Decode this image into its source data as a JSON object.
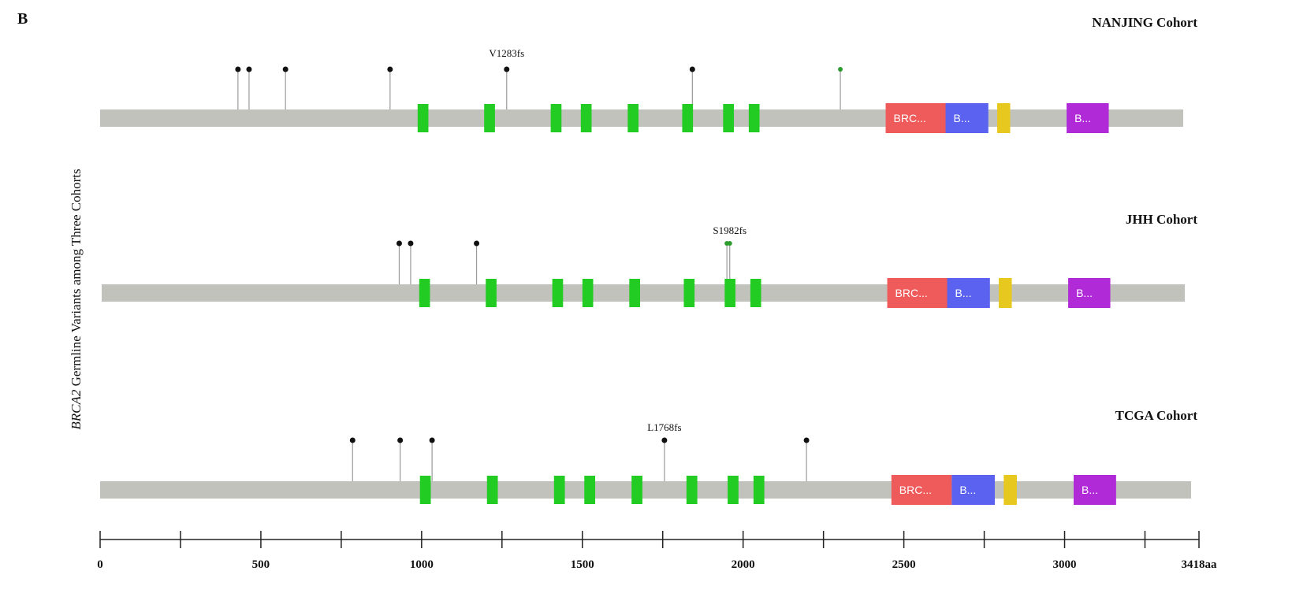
{
  "panel_label": "B",
  "ylabel_italic": "BRCA2",
  "ylabel_rest": " Germline Variants among Three Cohorts",
  "protein_length": 3418,
  "axis": {
    "ticks": [
      {
        "value": 0,
        "label": "0"
      },
      {
        "value": 250,
        "label": ""
      },
      {
        "value": 500,
        "label": "500"
      },
      {
        "value": 750,
        "label": ""
      },
      {
        "value": 1000,
        "label": "1000"
      },
      {
        "value": 1250,
        "label": ""
      },
      {
        "value": 1500,
        "label": "1500"
      },
      {
        "value": 1750,
        "label": ""
      },
      {
        "value": 2000,
        "label": "2000"
      },
      {
        "value": 2250,
        "label": ""
      },
      {
        "value": 2500,
        "label": "2500"
      },
      {
        "value": 2750,
        "label": ""
      },
      {
        "value": 3000,
        "label": "3000"
      },
      {
        "value": 3250,
        "label": ""
      },
      {
        "value": 3418,
        "label": "3418aa"
      }
    ]
  },
  "colors": {
    "backbone": "#c2c2bd",
    "brc_repeat": "#22cc22",
    "helical": "#ef5a5a",
    "ob_fold": "#5a62ef",
    "tower": "#e6c81e",
    "ob3": "#b02ad8",
    "lollipop_head": "#111111",
    "lollipop_head_alt": "#2e9c2e",
    "stem": "#9a9a9a",
    "axis": "#222222"
  },
  "cohorts": [
    {
      "name": "NANJING Cohort",
      "domains": [
        {
          "start": 1002,
          "end": 1036,
          "label": "",
          "kind": "brc_repeat"
        },
        {
          "start": 1212,
          "end": 1246,
          "label": "",
          "kind": "brc_repeat"
        },
        {
          "start": 1422,
          "end": 1456,
          "label": "",
          "kind": "brc_repeat"
        },
        {
          "start": 1517,
          "end": 1551,
          "label": "",
          "kind": "brc_repeat"
        },
        {
          "start": 1665,
          "end": 1699,
          "label": "",
          "kind": "brc_repeat"
        },
        {
          "start": 1837,
          "end": 1871,
          "label": "",
          "kind": "brc_repeat"
        },
        {
          "start": 1966,
          "end": 2000,
          "label": "",
          "kind": "brc_repeat"
        },
        {
          "start": 2047,
          "end": 2081,
          "label": "",
          "kind": "brc_repeat"
        },
        {
          "start": 2479,
          "end": 2668,
          "label": "BRC...",
          "kind": "helical"
        },
        {
          "start": 2668,
          "end": 2803,
          "label": "B...",
          "kind": "ob_fold"
        },
        {
          "start": 2831,
          "end": 2872,
          "label": "",
          "kind": "tower"
        },
        {
          "start": 3050,
          "end": 3183,
          "label": "B...",
          "kind": "ob3"
        }
      ],
      "variants": [
        {
          "position": 435,
          "label": "",
          "color": "lollipop_head"
        },
        {
          "position": 470,
          "label": "",
          "color": "lollipop_head"
        },
        {
          "position": 585,
          "label": "",
          "color": "lollipop_head"
        },
        {
          "position": 915,
          "label": "",
          "color": "lollipop_head"
        },
        {
          "position": 1283,
          "label": "V1283fs",
          "color": "lollipop_head"
        },
        {
          "position": 1869,
          "label": "",
          "color": "lollipop_head"
        },
        {
          "position": 2336,
          "label": "",
          "color": "lollipop_head_alt"
        }
      ]
    },
    {
      "name": "JHH Cohort",
      "domains": [
        {
          "start": 1002,
          "end": 1036,
          "label": "",
          "kind": "brc_repeat"
        },
        {
          "start": 1212,
          "end": 1246,
          "label": "",
          "kind": "brc_repeat"
        },
        {
          "start": 1422,
          "end": 1456,
          "label": "",
          "kind": "brc_repeat"
        },
        {
          "start": 1517,
          "end": 1551,
          "label": "",
          "kind": "brc_repeat"
        },
        {
          "start": 1665,
          "end": 1699,
          "label": "",
          "kind": "brc_repeat"
        },
        {
          "start": 1837,
          "end": 1871,
          "label": "",
          "kind": "brc_repeat"
        },
        {
          "start": 1966,
          "end": 2000,
          "label": "",
          "kind": "brc_repeat"
        },
        {
          "start": 2047,
          "end": 2081,
          "label": "",
          "kind": "brc_repeat"
        },
        {
          "start": 2479,
          "end": 2668,
          "label": "BRC...",
          "kind": "helical"
        },
        {
          "start": 2668,
          "end": 2803,
          "label": "B...",
          "kind": "ob_fold"
        },
        {
          "start": 2831,
          "end": 2872,
          "label": "",
          "kind": "tower"
        },
        {
          "start": 3050,
          "end": 3183,
          "label": "B...",
          "kind": "ob3"
        }
      ],
      "variants": [
        {
          "position": 939,
          "label": "",
          "color": "lollipop_head"
        },
        {
          "position": 975,
          "label": "",
          "color": "lollipop_head"
        },
        {
          "position": 1183,
          "label": "",
          "color": "lollipop_head"
        },
        {
          "position": 1973,
          "label": "",
          "color": "lollipop_head_alt"
        },
        {
          "position": 1982,
          "label": "S1982fs",
          "color": "lollipop_head_alt"
        }
      ]
    },
    {
      "name": "TCGA Cohort",
      "domains": [
        {
          "start": 1002,
          "end": 1036,
          "label": "",
          "kind": "brc_repeat"
        },
        {
          "start": 1212,
          "end": 1246,
          "label": "",
          "kind": "brc_repeat"
        },
        {
          "start": 1422,
          "end": 1456,
          "label": "",
          "kind": "brc_repeat"
        },
        {
          "start": 1517,
          "end": 1551,
          "label": "",
          "kind": "brc_repeat"
        },
        {
          "start": 1665,
          "end": 1699,
          "label": "",
          "kind": "brc_repeat"
        },
        {
          "start": 1837,
          "end": 1871,
          "label": "",
          "kind": "brc_repeat"
        },
        {
          "start": 1966,
          "end": 2000,
          "label": "",
          "kind": "brc_repeat"
        },
        {
          "start": 2047,
          "end": 2081,
          "label": "",
          "kind": "brc_repeat"
        },
        {
          "start": 2479,
          "end": 2668,
          "label": "BRC...",
          "kind": "helical"
        },
        {
          "start": 2668,
          "end": 2803,
          "label": "B...",
          "kind": "ob_fold"
        },
        {
          "start": 2831,
          "end": 2872,
          "label": "",
          "kind": "tower"
        },
        {
          "start": 3050,
          "end": 3183,
          "label": "B...",
          "kind": "ob3"
        }
      ],
      "variants": [
        {
          "position": 791,
          "label": "",
          "color": "lollipop_head"
        },
        {
          "position": 940,
          "label": "",
          "color": "lollipop_head"
        },
        {
          "position": 1040,
          "label": "",
          "color": "lollipop_head"
        },
        {
          "position": 1768,
          "label": "L1768fs",
          "color": "lollipop_head"
        },
        {
          "position": 2213,
          "label": "",
          "color": "lollipop_head"
        }
      ]
    }
  ]
}
